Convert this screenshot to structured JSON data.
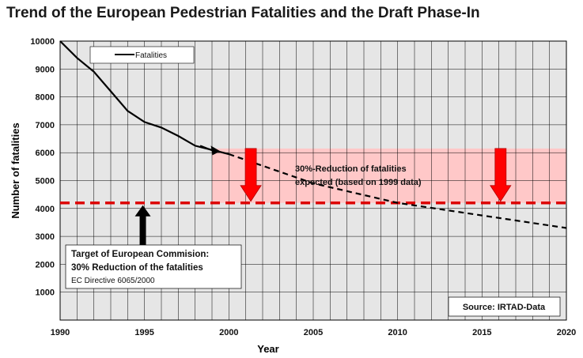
{
  "chart_data": {
    "type": "line",
    "title": "Trend of the European Pedestrian Fatalities and the Draft Phase-In",
    "xlabel": "Year",
    "ylabel": "Number of fatalities",
    "xlim": [
      1990,
      2020
    ],
    "ylim": [
      0,
      10000
    ],
    "x_ticks": [
      1990,
      1995,
      2000,
      2005,
      2010,
      2015,
      2020
    ],
    "y_ticks": [
      1000,
      2000,
      3000,
      4000,
      5000,
      6000,
      7000,
      8000,
      9000,
      10000
    ],
    "grid": true,
    "legend": {
      "entries": [
        "Fatalities"
      ],
      "placement": "top-left"
    },
    "series": [
      {
        "name": "Fatalities",
        "style": "solid",
        "color": "#000000",
        "x": [
          1990,
          1991,
          1992,
          1993,
          1994,
          1995,
          1996,
          1997,
          1998,
          1999,
          2000
        ],
        "y": [
          10000,
          9400,
          8900,
          8200,
          7500,
          7100,
          6900,
          6600,
          6250,
          6100,
          5950
        ]
      },
      {
        "name": "",
        "style": "dashed",
        "color": "#000000",
        "x": [
          2000,
          2005,
          2010,
          2015,
          2020
        ],
        "y": [
          5950,
          4900,
          4200,
          3750,
          3300
        ]
      }
    ],
    "target_line": {
      "value": 4200,
      "color": "#dd0000",
      "style": "dashed"
    },
    "reduction_band": {
      "x_from": 1999,
      "x_to": 2020,
      "y_from": 4200,
      "y_to": 6150,
      "color": "#ffc8c8"
    },
    "annotations": {
      "reduction_text": [
        "30%-Reduction of fatalities",
        "expected (based on 1999 data)"
      ],
      "target_box": {
        "line1": "Target of European Commision:",
        "line2": "30% Reduction of the fatalities",
        "line3": "EC Directive 6065/2000"
      },
      "source": "Source: IRTAD-Data"
    },
    "colors": {
      "arrow_red": "#ff0000",
      "arrow_black": "#000000",
      "plot_bg": "#e6e6e6",
      "grid": "#000000"
    }
  }
}
